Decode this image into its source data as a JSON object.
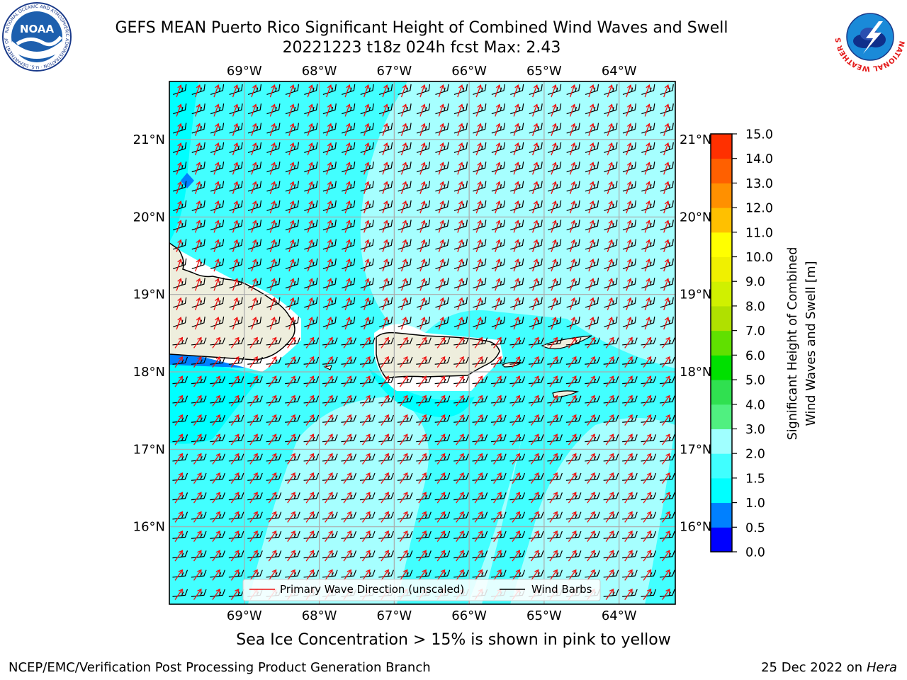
{
  "title_line1": "GEFS MEAN Puerto Rico Significant Height of Combined Wind Waves and Swell",
  "title_line2": "20221223 t18z 024h fcst   Max: 2.43",
  "map": {
    "lon_ticks": [
      "69°W",
      "68°W",
      "67°W",
      "66°W",
      "65°W",
      "64°W"
    ],
    "lon_values": [
      -69,
      -68,
      -67,
      -66,
      -65,
      -64
    ],
    "lat_ticks": [
      "21°N",
      "20°N",
      "19°N",
      "18°N",
      "17°N",
      "16°N"
    ],
    "lat_values": [
      21,
      20,
      19,
      18,
      17,
      16
    ],
    "lon_range": [
      -70,
      -63.25
    ],
    "lat_range": [
      15.0,
      21.75
    ],
    "legend": {
      "wave_direction": "Primary Wave Direction (unscaled)",
      "wind_barbs": "Wind Barbs"
    }
  },
  "colorbar": {
    "label_line1": "Significant Height of Combined",
    "label_line2": "Wind Waves and Swell [m]",
    "ticks": [
      "0.0",
      "0.5",
      "1.0",
      "1.5",
      "2.0",
      "3.0",
      "4.0",
      "5.0",
      "6.0",
      "7.0",
      "8.0",
      "9.0",
      "10.0",
      "11.0",
      "12.0",
      "13.0",
      "14.0",
      "15.0"
    ],
    "colors": [
      "#0000ff",
      "#0080ff",
      "#00ffff",
      "#40ffff",
      "#a0ffff",
      "#50f080",
      "#30e050",
      "#00e000",
      "#60e000",
      "#b0e000",
      "#d0f000",
      "#f0f000",
      "#ffff00",
      "#ffc000",
      "#ff9000",
      "#ff6000",
      "#ff3000",
      "#ff0000"
    ]
  },
  "sea_ice_note": "Sea Ice Concentration > 15% is shown in pink to yellow",
  "footer_left": "NCEP/EMC/Verification Post Processing Product Generation Branch",
  "footer_right_date": "25 Dec 2022 on",
  "footer_right_machine": "Hera",
  "logos": {
    "noaa_text": "NOAA",
    "noaa_ring_text": "NATIONAL OCEANIC AND ATMOSPHERIC ADMINISTRATION · U.S. DEPARTMENT OF COMMERCE",
    "nws_ring_text": "NATIONAL WEATHER SERVICE"
  },
  "colors": {
    "land": "#eeeedd",
    "wave_arrow": "#ee1111",
    "wind_barb": "#000000",
    "grid": "#aaaaaa"
  }
}
